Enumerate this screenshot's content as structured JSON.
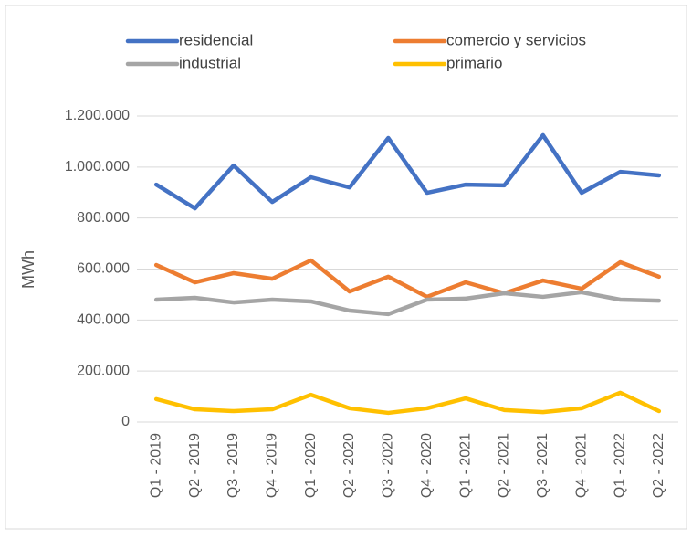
{
  "chart_data": {
    "type": "line",
    "y_label": "MWh",
    "categories": [
      "Q1 - 2019",
      "Q2 - 2019",
      "Q3 - 2019",
      "Q4 - 2019",
      "Q1 - 2020",
      "Q2 - 2020",
      "Q3 - 2020",
      "Q4 - 2020",
      "Q1 - 2021",
      "Q2 - 2021",
      "Q3 - 2021",
      "Q4 - 2021",
      "Q1 - 2022",
      "Q2 - 2022"
    ],
    "series": [
      {
        "name": "residencial",
        "color": "#4472c4",
        "values": [
          931000,
          838000,
          1006000,
          863000,
          960000,
          920000,
          1114000,
          899000,
          931000,
          928000,
          1125000,
          899000,
          981000,
          967000
        ]
      },
      {
        "name": "comercio y servicios",
        "color": "#ed7d31",
        "values": [
          616000,
          548000,
          584000,
          562000,
          634000,
          512000,
          570000,
          491000,
          548000,
          505000,
          555000,
          523000,
          627000,
          570000
        ]
      },
      {
        "name": "industrial",
        "color": "#a5a5a5",
        "values": [
          480000,
          487000,
          469000,
          480000,
          473000,
          437000,
          423000,
          480000,
          484000,
          505000,
          491000,
          509000,
          480000,
          476000
        ]
      },
      {
        "name": "primario",
        "color": "#ffc000",
        "values": [
          90000,
          50000,
          43000,
          50000,
          107000,
          54000,
          36000,
          54000,
          93000,
          47000,
          39000,
          54000,
          115000,
          43000
        ]
      }
    ],
    "ylim": [
      0,
      1200000
    ],
    "yticks": [
      0,
      {
        "value": 200000,
        "label": "200.000"
      },
      {
        "value": 400000,
        "label": "400.000"
      },
      {
        "value": 600000,
        "label": "600.000"
      },
      {
        "value": 800000,
        "label": "800.000"
      },
      {
        "value": 1000000,
        "label": "1.000.000"
      },
      {
        "value": 1200000,
        "label": "1.200.000"
      }
    ],
    "grid": true,
    "legend": "top"
  }
}
